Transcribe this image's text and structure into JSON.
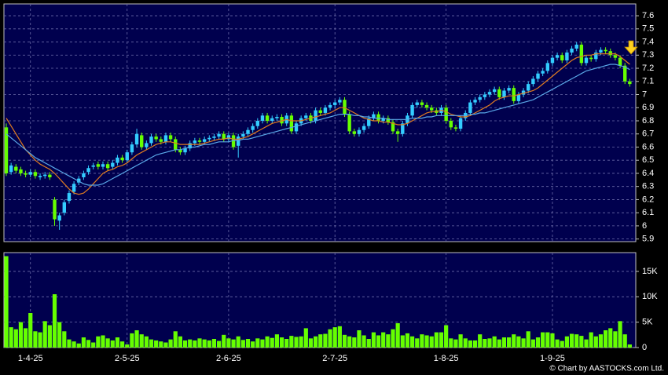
{
  "chart_data": [
    {
      "type": "candlestick",
      "up_color": "#33ccff",
      "down_color": "#66ff00",
      "grid": true,
      "categories": [
        null,
        null,
        null,
        null,
        null,
        "1-4-25",
        null,
        null,
        null,
        null,
        null,
        null,
        null,
        null,
        null,
        null,
        null,
        null,
        null,
        null,
        null,
        null,
        null,
        null,
        null,
        "2-5-25",
        null,
        null,
        null,
        null,
        null,
        null,
        null,
        null,
        null,
        null,
        null,
        null,
        null,
        null,
        null,
        null,
        null,
        null,
        null,
        null,
        "2-6-25",
        null,
        null,
        null,
        null,
        null,
        null,
        null,
        null,
        null,
        null,
        null,
        null,
        null,
        null,
        null,
        null,
        null,
        null,
        null,
        null,
        null,
        "2-7-25",
        null,
        null,
        null,
        null,
        null,
        null,
        null,
        null,
        null,
        null,
        null,
        null,
        null,
        null,
        null,
        null,
        null,
        null,
        null,
        null,
        null,
        null,
        "1-8-25",
        null,
        null,
        null,
        null,
        null,
        null,
        null,
        null,
        null,
        null,
        null,
        null,
        null,
        null,
        null,
        null,
        null,
        null,
        null,
        null,
        null,
        "1-9-25",
        null,
        null,
        null,
        null,
        null,
        null,
        null,
        null,
        null,
        null,
        null,
        null,
        null,
        null,
        null,
        null
      ],
      "open": [
        6.75,
        6.41,
        6.45,
        6.43,
        6.4,
        6.39,
        6.41,
        6.37,
        6.38,
        6.39,
        6.2,
        6.04,
        6.1,
        6.19,
        6.26,
        6.33,
        6.37,
        6.41,
        6.45,
        6.47,
        6.45,
        6.47,
        6.45,
        6.48,
        6.52,
        6.5,
        6.56,
        6.62,
        6.69,
        6.6,
        6.63,
        6.68,
        6.66,
        6.64,
        6.69,
        6.66,
        6.58,
        6.56,
        6.59,
        6.63,
        6.65,
        6.64,
        6.66,
        6.67,
        6.68,
        6.7,
        6.66,
        6.69,
        6.61,
        6.68,
        6.7,
        6.73,
        6.76,
        6.8,
        6.84,
        6.8,
        6.82,
        6.83,
        6.78,
        6.84,
        6.72,
        6.78,
        6.82,
        6.84,
        6.8,
        6.88,
        6.86,
        6.9,
        6.92,
        6.94,
        6.96,
        6.85,
        6.72,
        6.7,
        6.73,
        6.76,
        6.82,
        6.85,
        6.8,
        6.82,
        6.79,
        6.72,
        6.7,
        6.78,
        6.84,
        6.92,
        6.94,
        6.92,
        6.9,
        6.88,
        6.86,
        6.9,
        6.8,
        6.75,
        6.74,
        6.82,
        6.86,
        6.94,
        6.96,
        6.98,
        7.0,
        7.02,
        7.04,
        6.98,
        7.03,
        7.05,
        6.95,
        7.0,
        7.03,
        7.08,
        7.12,
        7.16,
        7.18,
        7.24,
        7.28,
        7.3,
        7.26,
        7.32,
        7.35,
        7.38,
        7.24,
        7.28,
        7.27,
        7.32,
        7.34,
        7.33,
        7.3,
        7.28,
        7.22,
        7.1
      ],
      "high": [
        6.78,
        6.48,
        6.47,
        6.45,
        6.42,
        6.43,
        6.43,
        6.4,
        6.41,
        6.41,
        6.22,
        6.1,
        6.2,
        6.27,
        6.34,
        6.38,
        6.42,
        6.46,
        6.48,
        6.49,
        6.49,
        6.49,
        6.5,
        6.54,
        6.54,
        6.58,
        6.64,
        6.74,
        6.71,
        6.65,
        6.7,
        6.7,
        6.68,
        6.71,
        6.71,
        6.68,
        6.6,
        6.61,
        6.65,
        6.67,
        6.67,
        6.68,
        6.69,
        6.7,
        6.72,
        6.72,
        6.71,
        6.71,
        6.7,
        6.72,
        6.75,
        6.78,
        6.82,
        6.86,
        6.86,
        6.84,
        6.85,
        6.85,
        6.86,
        6.86,
        6.8,
        6.84,
        6.86,
        6.86,
        6.9,
        6.9,
        6.92,
        6.94,
        6.96,
        6.98,
        6.98,
        6.87,
        6.74,
        6.75,
        6.78,
        6.84,
        6.87,
        6.87,
        6.84,
        6.84,
        6.81,
        6.74,
        6.8,
        6.86,
        6.94,
        6.96,
        6.96,
        6.94,
        6.92,
        6.9,
        6.92,
        6.92,
        6.82,
        6.77,
        6.84,
        6.88,
        6.96,
        6.98,
        7.0,
        7.02,
        7.04,
        7.06,
        7.06,
        7.05,
        7.07,
        7.07,
        7.02,
        7.05,
        7.1,
        7.14,
        7.18,
        7.2,
        7.26,
        7.3,
        7.32,
        7.32,
        7.34,
        7.37,
        7.4,
        7.4,
        7.3,
        7.3,
        7.34,
        7.36,
        7.36,
        7.35,
        7.32,
        7.3,
        7.24,
        7.12
      ],
      "low": [
        6.38,
        6.39,
        6.4,
        6.38,
        6.37,
        6.37,
        6.36,
        6.35,
        6.36,
        6.35,
        6.0,
        5.97,
        6.08,
        6.17,
        6.24,
        6.31,
        6.35,
        6.39,
        6.43,
        6.43,
        6.43,
        6.42,
        6.43,
        6.46,
        6.48,
        6.48,
        6.54,
        6.6,
        6.58,
        6.58,
        6.61,
        6.64,
        6.62,
        6.62,
        6.64,
        6.56,
        6.54,
        6.54,
        6.57,
        6.61,
        6.62,
        6.62,
        6.64,
        6.65,
        6.66,
        6.64,
        6.64,
        6.58,
        6.52,
        6.66,
        6.68,
        6.71,
        6.74,
        6.78,
        6.78,
        6.78,
        6.8,
        6.76,
        6.76,
        6.7,
        6.7,
        6.76,
        6.8,
        6.78,
        6.78,
        6.84,
        6.84,
        6.88,
        6.9,
        6.92,
        6.83,
        6.7,
        6.68,
        6.68,
        6.71,
        6.74,
        6.8,
        6.78,
        6.78,
        6.77,
        6.7,
        6.64,
        6.68,
        6.76,
        6.82,
        6.9,
        6.9,
        6.88,
        6.86,
        6.84,
        6.84,
        6.78,
        6.73,
        6.72,
        6.72,
        6.8,
        6.84,
        6.92,
        6.94,
        6.96,
        6.98,
        7.0,
        6.96,
        6.96,
        7.01,
        6.93,
        6.93,
        6.98,
        7.01,
        7.06,
        7.1,
        7.14,
        7.16,
        7.22,
        7.26,
        7.24,
        7.24,
        7.3,
        7.33,
        7.22,
        7.22,
        7.25,
        7.25,
        7.3,
        7.31,
        7.28,
        7.26,
        7.2,
        7.08,
        7.06
      ],
      "close": [
        6.4,
        6.46,
        6.42,
        6.4,
        6.39,
        6.41,
        6.38,
        6.38,
        6.39,
        6.37,
        6.05,
        6.08,
        6.18,
        6.25,
        6.32,
        6.36,
        6.4,
        6.44,
        6.46,
        6.45,
        6.47,
        6.44,
        6.48,
        6.52,
        6.5,
        6.56,
        6.62,
        6.7,
        6.6,
        6.63,
        6.68,
        6.66,
        6.64,
        6.69,
        6.66,
        6.58,
        6.56,
        6.59,
        6.63,
        6.65,
        6.64,
        6.66,
        6.67,
        6.68,
        6.7,
        6.66,
        6.69,
        6.6,
        6.68,
        6.7,
        6.73,
        6.76,
        6.8,
        6.84,
        6.8,
        6.82,
        6.83,
        6.78,
        6.84,
        6.72,
        6.78,
        6.82,
        6.84,
        6.8,
        6.88,
        6.86,
        6.9,
        6.92,
        6.94,
        6.96,
        6.85,
        6.72,
        6.7,
        6.73,
        6.76,
        6.82,
        6.85,
        6.8,
        6.82,
        6.79,
        6.72,
        6.7,
        6.78,
        6.84,
        6.92,
        6.94,
        6.92,
        6.9,
        6.88,
        6.86,
        6.9,
        6.8,
        6.75,
        6.74,
        6.82,
        6.86,
        6.94,
        6.96,
        6.98,
        7.0,
        7.02,
        7.04,
        6.98,
        7.03,
        7.05,
        6.95,
        7.0,
        7.03,
        7.08,
        7.12,
        7.16,
        7.18,
        7.24,
        7.28,
        7.3,
        7.26,
        7.32,
        7.35,
        7.38,
        7.24,
        7.28,
        7.27,
        7.32,
        7.34,
        7.33,
        7.3,
        7.28,
        7.22,
        7.1,
        7.08
      ],
      "lines": [
        {
          "color": "#e07b20",
          "values": [
            6.82,
            6.76,
            6.7,
            6.64,
            6.58,
            6.54,
            6.5,
            6.47,
            6.45,
            6.43,
            6.4,
            6.36,
            6.32,
            6.28,
            6.25,
            6.24,
            6.25,
            6.28,
            6.32,
            6.36,
            6.4,
            6.42,
            6.43,
            6.45,
            6.46,
            6.48,
            6.51,
            6.54,
            6.56,
            6.58,
            6.6,
            6.62,
            6.63,
            6.64,
            6.64,
            6.63,
            6.62,
            6.62,
            6.62,
            6.62,
            6.62,
            6.63,
            6.64,
            6.65,
            6.66,
            6.66,
            6.67,
            6.66,
            6.66,
            6.67,
            6.68,
            6.7,
            6.72,
            6.74,
            6.76,
            6.78,
            6.79,
            6.8,
            6.81,
            6.8,
            6.8,
            6.8,
            6.81,
            6.82,
            6.83,
            6.84,
            6.85,
            6.86,
            6.88,
            6.9,
            6.9,
            6.88,
            6.86,
            6.84,
            6.82,
            6.81,
            6.8,
            6.8,
            6.79,
            6.79,
            6.78,
            6.77,
            6.77,
            6.78,
            6.8,
            6.82,
            6.84,
            6.86,
            6.87,
            6.87,
            6.88,
            6.87,
            6.85,
            6.84,
            6.83,
            6.83,
            6.84,
            6.86,
            6.88,
            6.9,
            6.92,
            6.95,
            6.97,
            6.98,
            6.99,
            6.99,
            7.0,
            7.01,
            7.02,
            7.03,
            7.05,
            7.08,
            7.11,
            7.14,
            7.17,
            7.2,
            7.23,
            7.26,
            7.28,
            7.29,
            7.3,
            7.3,
            7.31,
            7.31,
            7.31,
            7.31,
            7.31,
            7.29,
            7.26,
            7.23
          ]
        },
        {
          "color": "#5aa8e8",
          "values": [
            6.7,
            6.67,
            6.64,
            6.61,
            6.58,
            6.55,
            6.52,
            6.5,
            6.48,
            6.46,
            6.44,
            6.42,
            6.4,
            6.38,
            6.36,
            6.34,
            6.32,
            6.31,
            6.31,
            6.31,
            6.32,
            6.34,
            6.36,
            6.38,
            6.4,
            6.42,
            6.44,
            6.46,
            6.48,
            6.5,
            6.52,
            6.54,
            6.55,
            6.56,
            6.57,
            6.58,
            6.58,
            6.59,
            6.6,
            6.6,
            6.61,
            6.62,
            6.62,
            6.63,
            6.64,
            6.64,
            6.64,
            6.65,
            6.65,
            6.66,
            6.66,
            6.67,
            6.68,
            6.69,
            6.7,
            6.71,
            6.72,
            6.73,
            6.74,
            6.75,
            6.76,
            6.77,
            6.78,
            6.79,
            6.8,
            6.81,
            6.82,
            6.83,
            6.84,
            6.85,
            6.85,
            6.85,
            6.84,
            6.84,
            6.83,
            6.83,
            6.82,
            6.82,
            6.82,
            6.81,
            6.81,
            6.81,
            6.81,
            6.81,
            6.82,
            6.82,
            6.82,
            6.83,
            6.83,
            6.84,
            6.84,
            6.84,
            6.84,
            6.84,
            6.84,
            6.84,
            6.85,
            6.85,
            6.86,
            6.86,
            6.87,
            6.88,
            6.89,
            6.9,
            6.91,
            6.92,
            6.93,
            6.94,
            6.95,
            6.96,
            6.98,
            7.0,
            7.02,
            7.04,
            7.06,
            7.08,
            7.1,
            7.12,
            7.14,
            7.16,
            7.18,
            7.19,
            7.2,
            7.21,
            7.22,
            7.23,
            7.23,
            7.22,
            7.21,
            7.19
          ]
        }
      ],
      "ylim": [
        5.88,
        7.69
      ],
      "yticks": [
        5.9,
        6,
        6.1,
        6.2,
        6.3,
        6.4,
        6.5,
        6.6,
        6.7,
        6.8,
        6.9,
        7,
        7.1,
        7.2,
        7.3,
        7.4,
        7.5,
        7.6
      ]
    },
    {
      "type": "bar",
      "color": "#66ff00",
      "grid": true,
      "values": [
        18000,
        4000,
        3600,
        5000,
        3800,
        6800,
        3200,
        3000,
        5200,
        4400,
        10500,
        5000,
        3200,
        1600,
        1200,
        800,
        2000,
        1500,
        1000,
        2200,
        2400,
        1800,
        1400,
        2000,
        1200,
        600,
        2800,
        3400,
        2600,
        2200,
        1600,
        1400,
        1200,
        1000,
        1600,
        3200,
        2200,
        1400,
        1600,
        1400,
        1800,
        1600,
        1400,
        1700,
        1300,
        2500,
        1800,
        1600,
        2200,
        1500,
        1700,
        1200,
        1800,
        1600,
        2200,
        1900,
        2600,
        2000,
        1700,
        2300,
        2100,
        2200,
        3800,
        1800,
        2200,
        2600,
        2700,
        3600,
        4000,
        4200,
        2500,
        2200,
        2000,
        3400,
        2400,
        1700,
        3000,
        2400,
        3000,
        2600,
        3600,
        4800,
        2400,
        2800,
        2200,
        1800,
        2600,
        2400,
        2200,
        3000,
        3000,
        4400,
        1800,
        1600,
        2600,
        1800,
        1400,
        1400,
        2600,
        1700,
        1800,
        2200,
        1600,
        2000,
        2000,
        2600,
        2200,
        1800,
        3200,
        1600,
        2000,
        3000,
        3000,
        2800,
        1600,
        1300,
        2200,
        2700,
        2600,
        2300,
        1600,
        3000,
        2200,
        2600,
        3400,
        3800,
        3200,
        5200,
        2600,
        600
      ],
      "ylim": [
        0,
        18700
      ],
      "yticks": [
        0,
        {
          "value": 5000,
          "label": "5K"
        },
        {
          "value": 10000,
          "label": "10K"
        },
        {
          "value": 15000,
          "label": "15K"
        }
      ]
    }
  ],
  "footer": "© Chart by AASTOCKS.com Ltd."
}
